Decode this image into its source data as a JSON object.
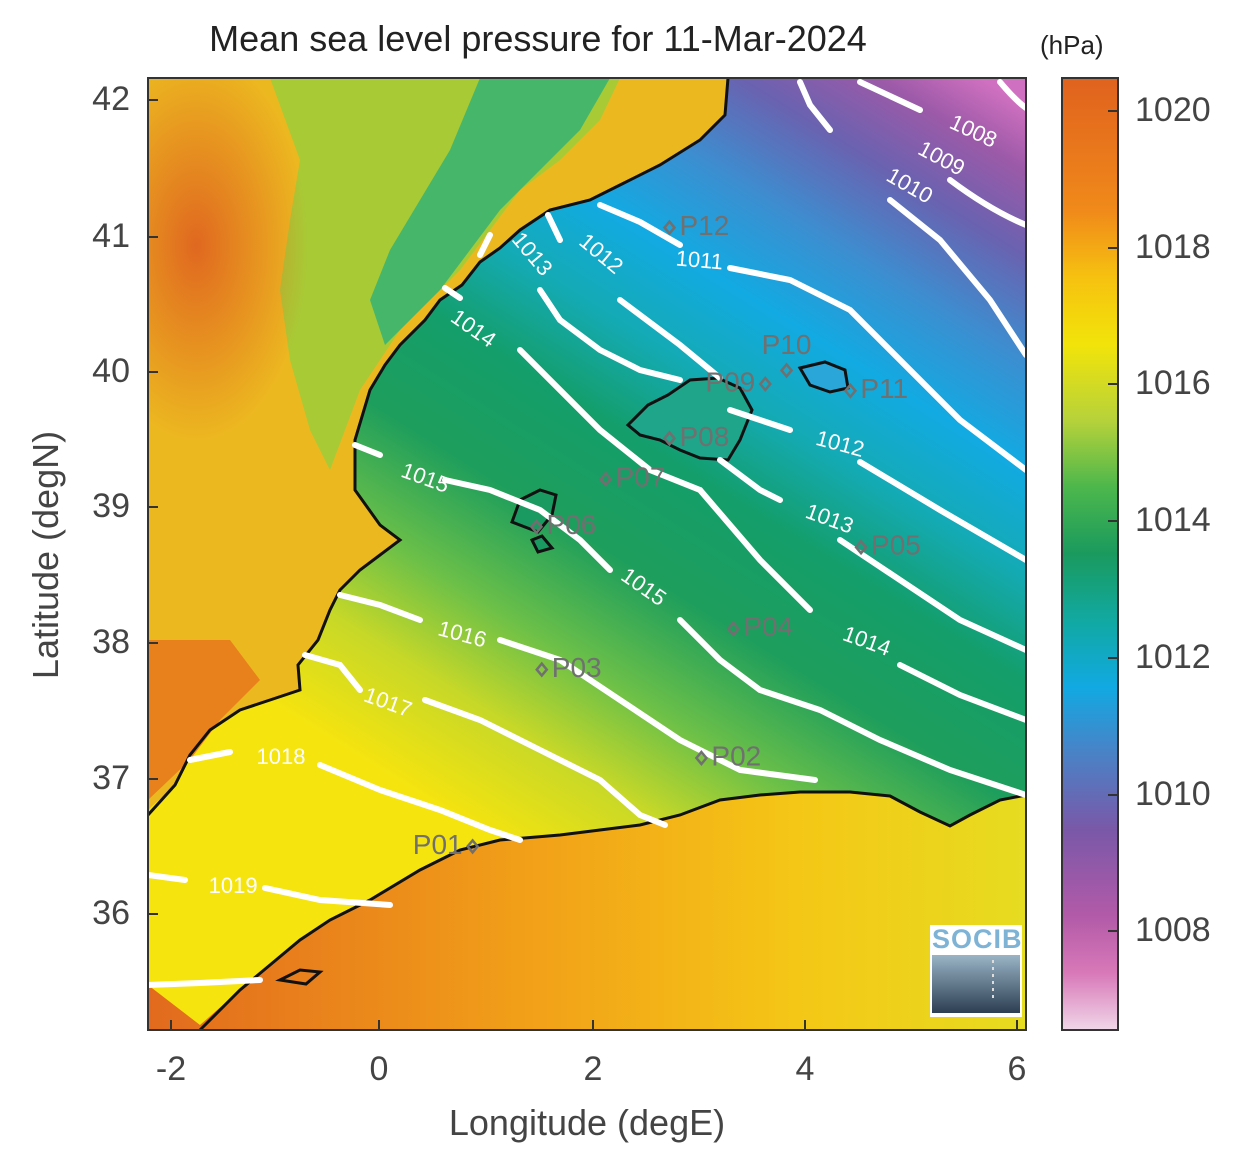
{
  "title": "Mean sea level pressure for 11-Mar-2024",
  "units": "(hPa)",
  "x_axis": {
    "label": "Longitude (degE)",
    "ticks": [
      "-2",
      "0",
      "2",
      "4",
      "6"
    ],
    "range": [
      -2.2,
      6.05
    ]
  },
  "y_axis": {
    "label": "Latitude (degN)",
    "ticks": [
      "42",
      "41",
      "40",
      "39",
      "38",
      "37",
      "36"
    ],
    "range": [
      35.15,
      42.15
    ]
  },
  "colorbar": {
    "ticks": [
      "1020",
      "1018",
      "1016",
      "1014",
      "1012",
      "1010",
      "1008"
    ],
    "range": [
      1006.5,
      1020.5
    ]
  },
  "contour_labels": [
    {
      "text": "1008",
      "lon": 5.55,
      "lat": 41.75,
      "angle": 25
    },
    {
      "text": "1009",
      "lon": 5.25,
      "lat": 41.55,
      "angle": 28
    },
    {
      "text": "1010",
      "lon": 4.95,
      "lat": 41.35,
      "angle": 30
    },
    {
      "text": "1011",
      "lon": 2.98,
      "lat": 40.8,
      "angle": 5
    },
    {
      "text": "1012",
      "lon": 2.05,
      "lat": 40.85,
      "angle": 40
    },
    {
      "text": "1013",
      "lon": 1.4,
      "lat": 40.85,
      "angle": 50
    },
    {
      "text": "1014",
      "lon": 0.85,
      "lat": 40.3,
      "angle": 35
    },
    {
      "text": "1015",
      "lon": 0.4,
      "lat": 39.2,
      "angle": 20
    },
    {
      "text": "1012",
      "lon": 4.3,
      "lat": 39.45,
      "angle": 15
    },
    {
      "text": "1013",
      "lon": 4.2,
      "lat": 38.9,
      "angle": 20
    },
    {
      "text": "1015",
      "lon": 2.45,
      "lat": 38.4,
      "angle": 35
    },
    {
      "text": "1014",
      "lon": 4.55,
      "lat": 38.0,
      "angle": 20
    },
    {
      "text": "1016",
      "lon": 0.75,
      "lat": 38.05,
      "angle": 15
    },
    {
      "text": "1017",
      "lon": 0.05,
      "lat": 37.55,
      "angle": 20
    },
    {
      "text": "1018",
      "lon": -0.95,
      "lat": 37.15,
      "angle": 0
    },
    {
      "text": "1019",
      "lon": -1.4,
      "lat": 36.2,
      "angle": 0
    }
  ],
  "stations": [
    {
      "id": "P01",
      "lon": 0.85,
      "lat": 36.5,
      "label_side": "left"
    },
    {
      "id": "P02",
      "lon": 3.0,
      "lat": 37.15,
      "label_side": "right"
    },
    {
      "id": "P03",
      "lon": 1.5,
      "lat": 37.8,
      "label_side": "right"
    },
    {
      "id": "P04",
      "lon": 3.3,
      "lat": 38.1,
      "label_side": "right"
    },
    {
      "id": "P05",
      "lon": 4.5,
      "lat": 38.7,
      "label_side": "right"
    },
    {
      "id": "P06",
      "lon": 1.45,
      "lat": 38.85,
      "label_side": "right"
    },
    {
      "id": "P07",
      "lon": 2.1,
      "lat": 39.2,
      "label_side": "right"
    },
    {
      "id": "P08",
      "lon": 2.7,
      "lat": 39.5,
      "label_side": "right"
    },
    {
      "id": "P09",
      "lon": 3.6,
      "lat": 39.9,
      "label_side": "left"
    },
    {
      "id": "P10",
      "lon": 3.8,
      "lat": 40.0,
      "label_side": "top"
    },
    {
      "id": "P11",
      "lon": 4.4,
      "lat": 39.85,
      "label_side": "right"
    },
    {
      "id": "P12",
      "lon": 2.7,
      "lat": 41.05,
      "label_side": "right"
    }
  ],
  "logo": {
    "text": "SOCIB"
  },
  "colors": {
    "contour": "#ffffff",
    "coast": "#111111",
    "station": "#707070"
  }
}
